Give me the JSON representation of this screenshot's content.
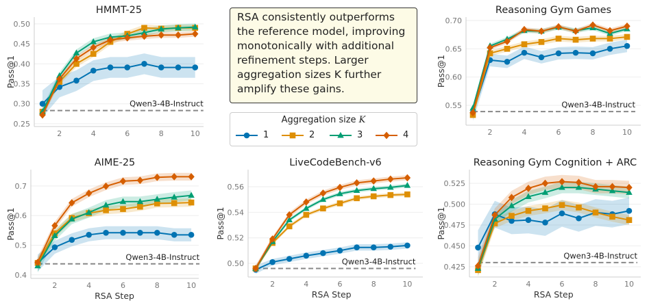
{
  "note": "RSA consistently outperforms the reference model, improving monotonically with additional refinement steps. Larger aggregation sizes K further amplify these gains.",
  "legend": {
    "title": "Aggregation size",
    "title_var": "K",
    "entries": [
      "1",
      "2",
      "3",
      "4"
    ]
  },
  "colors": [
    "#0173b2",
    "#de8f05",
    "#029e73",
    "#d55e00"
  ],
  "markers": [
    "circle",
    "square",
    "triangle",
    "diamond"
  ],
  "chart_data": [
    {
      "type": "line",
      "title": "HMMT-25",
      "ylabel": "Pass@1",
      "xlabel": "",
      "x": [
        1,
        2,
        3,
        4,
        5,
        6,
        7,
        8,
        9,
        10
      ],
      "ylim": [
        0.243,
        0.517
      ],
      "yticks": [
        "0.25",
        "0.30",
        "0.35",
        "0.40",
        "0.45",
        "0.50"
      ],
      "xticks": [
        2,
        4,
        6,
        8,
        10
      ],
      "baseline": {
        "label": "Qwen3-4B-Instruct",
        "value": 0.283
      },
      "series": [
        {
          "name": "1",
          "values": [
            0.3,
            0.342,
            0.358,
            0.383,
            0.391,
            0.391,
            0.4,
            0.391,
            0.391,
            0.391
          ],
          "ci": 0.026
        },
        {
          "name": "2",
          "values": [
            0.28,
            0.355,
            0.4,
            0.425,
            0.455,
            0.475,
            0.49,
            0.488,
            0.49,
            0.49
          ],
          "ci": 0.008
        },
        {
          "name": "3",
          "values": [
            0.28,
            0.37,
            0.427,
            0.455,
            0.467,
            0.47,
            0.478,
            0.487,
            0.49,
            0.492
          ],
          "ci": 0.009
        },
        {
          "name": "4",
          "values": [
            0.272,
            0.362,
            0.413,
            0.441,
            0.46,
            0.465,
            0.469,
            0.472,
            0.472,
            0.475
          ],
          "ci": 0.007
        }
      ]
    },
    {
      "type": "line",
      "title": "Reasoning Gym Games",
      "ylabel": "Pass@1",
      "xlabel": "",
      "x": [
        1,
        2,
        3,
        4,
        5,
        6,
        7,
        8,
        9,
        10
      ],
      "ylim": [
        0.515,
        0.706
      ],
      "yticks": [
        "0.55",
        "0.60",
        "0.65",
        "0.70"
      ],
      "xticks": [
        2,
        4,
        6,
        8,
        10
      ],
      "baseline": {
        "label": "Qwen3-4B-Instruct",
        "value": 0.539
      },
      "series": [
        {
          "name": "1",
          "values": [
            0.537,
            0.63,
            0.627,
            0.643,
            0.635,
            0.642,
            0.643,
            0.642,
            0.65,
            0.655
          ],
          "ci": 0.011
        },
        {
          "name": "2",
          "values": [
            0.533,
            0.642,
            0.65,
            0.658,
            0.662,
            0.668,
            0.666,
            0.668,
            0.668,
            0.671
          ],
          "ci": 0.005
        },
        {
          "name": "3",
          "values": [
            0.545,
            0.655,
            0.667,
            0.682,
            0.681,
            0.688,
            0.682,
            0.687,
            0.677,
            0.685
          ],
          "ci": 0.004
        },
        {
          "name": "4",
          "values": [
            0.537,
            0.652,
            0.663,
            0.684,
            0.681,
            0.689,
            0.681,
            0.692,
            0.682,
            0.69
          ],
          "ci": 0.004
        }
      ]
    },
    {
      "type": "line",
      "title": "AIME-25",
      "ylabel": "Pass@1",
      "xlabel": "RSA Step",
      "x": [
        1,
        2,
        3,
        4,
        5,
        6,
        7,
        8,
        9,
        10
      ],
      "ylim": [
        0.388,
        0.755
      ],
      "yticks": [
        "0.4",
        "0.5",
        "0.6",
        "0.7"
      ],
      "xticks": [
        2,
        4,
        6,
        8,
        10
      ],
      "baseline": {
        "label": "Qwen3-4B-Instruct",
        "value": 0.437
      },
      "series": [
        {
          "name": "1",
          "values": [
            0.44,
            0.493,
            0.518,
            0.535,
            0.542,
            0.542,
            0.542,
            0.542,
            0.535,
            0.535
          ],
          "ci": 0.022
        },
        {
          "name": "2",
          "values": [
            0.44,
            0.54,
            0.592,
            0.608,
            0.618,
            0.622,
            0.63,
            0.641,
            0.642,
            0.644
          ],
          "ci": 0.014
        },
        {
          "name": "3",
          "values": [
            0.43,
            0.532,
            0.588,
            0.61,
            0.635,
            0.647,
            0.647,
            0.655,
            0.662,
            0.668
          ],
          "ci": 0.017
        },
        {
          "name": "4",
          "values": [
            0.442,
            0.566,
            0.643,
            0.675,
            0.699,
            0.716,
            0.719,
            0.729,
            0.731,
            0.731
          ],
          "ci": 0.013
        }
      ]
    },
    {
      "type": "line",
      "title": "LiveCodeBench-v6",
      "ylabel": "Pass@1",
      "xlabel": "RSA Step",
      "x": [
        1,
        2,
        3,
        4,
        5,
        6,
        7,
        8,
        9,
        10
      ],
      "ylim": [
        0.4893,
        0.5734
      ],
      "yticks": [
        "0.50",
        "0.52",
        "0.54",
        "0.56"
      ],
      "xticks": [
        2,
        4,
        6,
        8,
        10
      ],
      "baseline": {
        "label": "Qwen3-4B-Instruct",
        "value": 0.496
      },
      "series": [
        {
          "name": "1",
          "values": [
            0.495,
            0.501,
            0.5035,
            0.506,
            0.508,
            0.51,
            0.5125,
            0.5125,
            0.513,
            0.514
          ],
          "ci": 0.0025
        },
        {
          "name": "2",
          "values": [
            0.496,
            0.516,
            0.529,
            0.538,
            0.543,
            0.547,
            0.551,
            0.5525,
            0.5535,
            0.554
          ],
          "ci": 0.0015
        },
        {
          "name": "3",
          "values": [
            0.496,
            0.517,
            0.534,
            0.543,
            0.55,
            0.5545,
            0.557,
            0.5585,
            0.5595,
            0.561
          ],
          "ci": 0.0015
        },
        {
          "name": "4",
          "values": [
            0.496,
            0.519,
            0.538,
            0.548,
            0.555,
            0.5595,
            0.563,
            0.5645,
            0.566,
            0.567
          ],
          "ci": 0.002
        }
      ]
    },
    {
      "type": "line",
      "title": "Reasoning Gym Cognition + ARC",
      "ylabel": "Pass@1",
      "xlabel": "RSA Step",
      "x": [
        1,
        2,
        3,
        4,
        5,
        6,
        7,
        8,
        9,
        10
      ],
      "ylim": [
        0.4127,
        0.5414
      ],
      "yticks": [
        "0.425",
        "0.450",
        "0.475",
        "0.500",
        "0.525"
      ],
      "xticks": [
        2,
        4,
        6,
        8,
        10
      ],
      "baseline": {
        "label": "Qwen3-4B-Instruct",
        "value": 0.43
      },
      "series": [
        {
          "name": "1",
          "values": [
            0.448,
            0.488,
            0.48,
            0.481,
            0.478,
            0.489,
            0.483,
            0.49,
            0.488,
            0.492
          ],
          "ci": 0.016
        },
        {
          "name": "2",
          "values": [
            0.421,
            0.477,
            0.486,
            0.492,
            0.495,
            0.499,
            0.496,
            0.49,
            0.485,
            0.481
          ],
          "ci": 0.006
        },
        {
          "name": "3",
          "values": [
            0.423,
            0.482,
            0.498,
            0.509,
            0.514,
            0.52,
            0.52,
            0.518,
            0.516,
            0.514
          ],
          "ci": 0.007
        },
        {
          "name": "4",
          "values": [
            0.426,
            0.487,
            0.508,
            0.519,
            0.525,
            0.527,
            0.526,
            0.521,
            0.521,
            0.52
          ],
          "ci": 0.008
        }
      ]
    }
  ]
}
